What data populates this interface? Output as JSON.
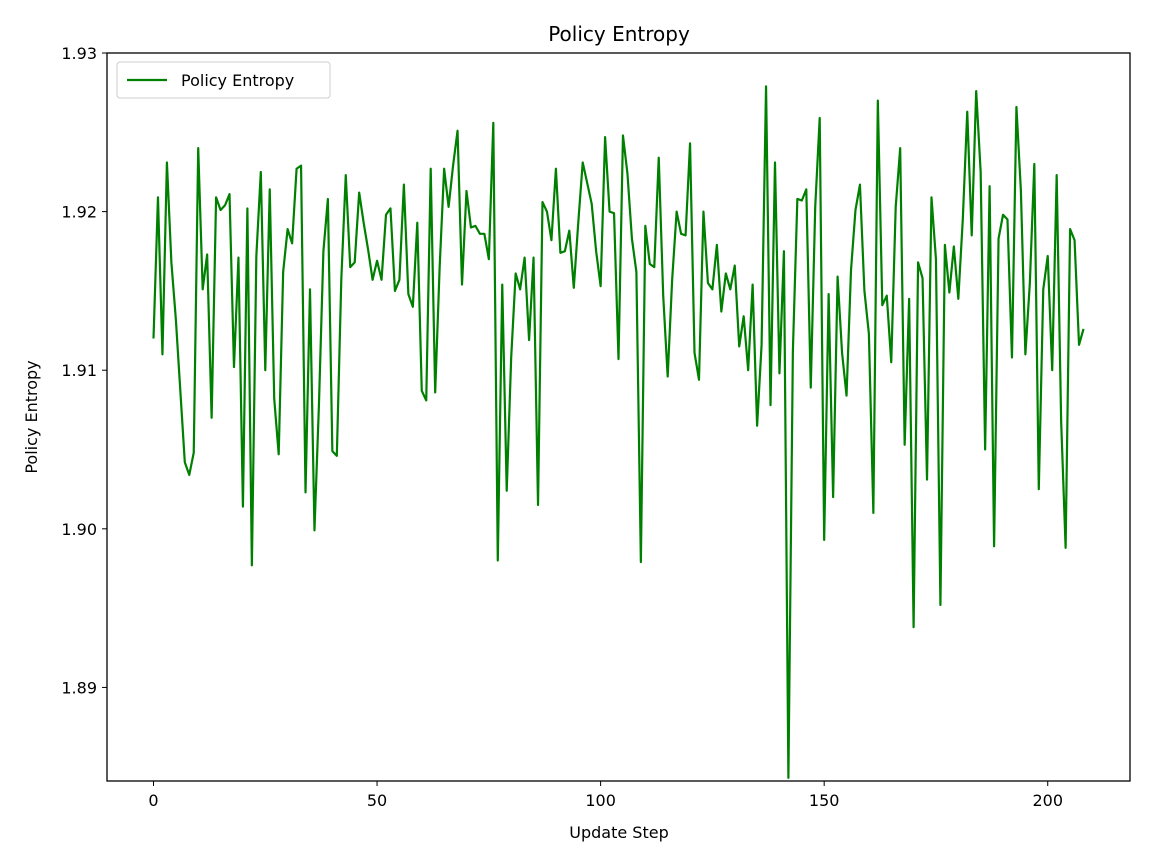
{
  "chart_data": {
    "type": "line",
    "title": "Policy Entropy",
    "xlabel": "Update Step",
    "ylabel": "Policy Entropy",
    "xlim": [
      -10.4,
      218.4
    ],
    "ylim": [
      1.8841,
      1.93
    ],
    "x_ticks": [
      0,
      50,
      100,
      150,
      200
    ],
    "x_tick_labels": [
      "0",
      "50",
      "100",
      "150",
      "200"
    ],
    "y_ticks": [
      1.89,
      1.9,
      1.91,
      1.92,
      1.93
    ],
    "y_tick_labels": [
      "1.89",
      "1.90",
      "1.91",
      "1.92",
      "1.93"
    ],
    "grid": false,
    "legend": "upper-left",
    "series": [
      {
        "name": "Policy Entropy",
        "color": "#008000",
        "x_start": 0,
        "x_step": 1,
        "values": [
          1.912,
          1.9209,
          1.911,
          1.9231,
          1.9168,
          1.9132,
          1.9087,
          1.9042,
          1.9034,
          1.9048,
          1.924,
          1.9151,
          1.9173,
          1.907,
          1.9209,
          1.9201,
          1.9204,
          1.9211,
          1.9102,
          1.9171,
          1.9014,
          1.9202,
          1.8977,
          1.9172,
          1.9225,
          1.91,
          1.9214,
          1.9082,
          1.9047,
          1.9162,
          1.9189,
          1.918,
          1.9227,
          1.9229,
          1.9023,
          1.9151,
          1.8999,
          1.9078,
          1.9175,
          1.9208,
          1.9049,
          1.9046,
          1.9157,
          1.9223,
          1.9165,
          1.9168,
          1.9212,
          1.9193,
          1.9176,
          1.9157,
          1.9169,
          1.9157,
          1.9198,
          1.9202,
          1.915,
          1.9157,
          1.9217,
          1.9148,
          1.914,
          1.9193,
          1.9087,
          1.9081,
          1.9227,
          1.9086,
          1.9165,
          1.9227,
          1.9203,
          1.9229,
          1.9251,
          1.9154,
          1.9213,
          1.919,
          1.9191,
          1.9186,
          1.9186,
          1.917,
          1.9256,
          1.898,
          1.9154,
          1.9024,
          1.9108,
          1.9161,
          1.9151,
          1.9171,
          1.9119,
          1.9171,
          1.9015,
          1.9206,
          1.92,
          1.9182,
          1.9227,
          1.9174,
          1.9175,
          1.9188,
          1.9152,
          1.9193,
          1.9231,
          1.9218,
          1.9205,
          1.9175,
          1.9153,
          1.9247,
          1.92,
          1.9199,
          1.9107,
          1.9248,
          1.9224,
          1.9183,
          1.9162,
          1.8979,
          1.9191,
          1.9167,
          1.9165,
          1.9234,
          1.9147,
          1.9096,
          1.9157,
          1.92,
          1.9186,
          1.9185,
          1.9243,
          1.9111,
          1.9094,
          1.92,
          1.9155,
          1.9151,
          1.9179,
          1.9137,
          1.9161,
          1.9151,
          1.9166,
          1.9115,
          1.9134,
          1.91,
          1.9154,
          1.9065,
          1.9116,
          1.9279,
          1.9078,
          1.9231,
          1.9098,
          1.9175,
          1.8843,
          1.9112,
          1.9208,
          1.9207,
          1.9214,
          1.9089,
          1.9203,
          1.9259,
          1.8993,
          1.9148,
          1.902,
          1.9159,
          1.9111,
          1.9084,
          1.9163,
          1.9201,
          1.9217,
          1.915,
          1.9123,
          1.901,
          1.927,
          1.9141,
          1.9147,
          1.9105,
          1.9203,
          1.924,
          1.9053,
          1.9145,
          1.8938,
          1.9168,
          1.9158,
          1.9031,
          1.9209,
          1.917,
          1.8952,
          1.9179,
          1.9149,
          1.9178,
          1.9145,
          1.9195,
          1.9263,
          1.9185,
          1.9276,
          1.9225,
          1.905,
          1.9216,
          1.8989,
          1.9183,
          1.9198,
          1.9195,
          1.9108,
          1.9266,
          1.9213,
          1.911,
          1.9155,
          1.923,
          1.9025,
          1.9151,
          1.9172,
          1.91,
          1.9223,
          1.9068,
          1.8988,
          1.9189,
          1.9182,
          1.9116,
          1.9126
        ]
      }
    ]
  }
}
